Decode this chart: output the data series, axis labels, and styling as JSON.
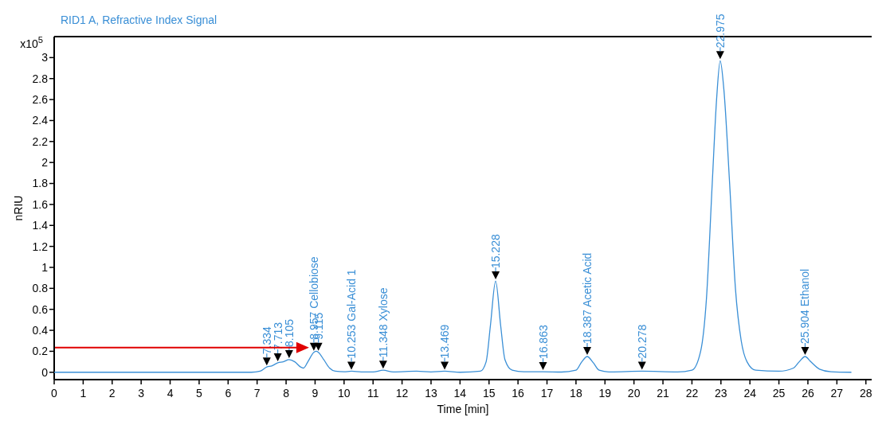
{
  "chart_data": {
    "type": "line",
    "subtitle": "RID1 A, Refractive Index Signal",
    "xlabel": "Time [min]",
    "ylabel": "nRIU",
    "xlim": [
      0,
      28.2
    ],
    "xticks": [
      0,
      1,
      2,
      3,
      4,
      5,
      6,
      7,
      8,
      9,
      10,
      11,
      12,
      13,
      14,
      15,
      16,
      17,
      18,
      19,
      20,
      21,
      22,
      23,
      24,
      25,
      26,
      27,
      28
    ],
    "ylim": [
      -0.07,
      3.2
    ],
    "yticks": [
      0,
      0.2,
      0.4,
      0.6,
      0.8,
      1,
      1.2,
      1.4,
      1.6,
      1.8,
      2,
      2.2,
      2.4,
      2.6,
      2.8,
      3
    ],
    "grid": false,
    "marker": "none",
    "line_style": "solid",
    "series": [
      {
        "color": "#3a8fd6",
        "x": [
          0,
          6.8,
          7.1,
          7.334,
          7.5,
          7.713,
          7.9,
          8.105,
          8.3,
          8.5,
          8.6,
          8.75,
          8.957,
          9.04,
          9.115,
          9.3,
          9.5,
          9.7,
          10.0,
          10.253,
          10.6,
          11.0,
          11.348,
          11.7,
          12.5,
          13.0,
          13.469,
          14.0,
          14.7,
          14.9,
          15.05,
          15.228,
          15.4,
          15.55,
          15.8,
          16.2,
          16.863,
          17.5,
          18.0,
          18.2,
          18.387,
          18.6,
          18.8,
          19.2,
          20.278,
          21.5,
          22.0,
          22.3,
          22.5,
          22.7,
          22.85,
          22.975,
          23.1,
          23.3,
          23.5,
          23.7,
          23.9,
          24.2,
          25.0,
          25.5,
          25.7,
          25.904,
          26.1,
          26.4,
          26.8,
          27.5
        ],
        "values": [
          0,
          0,
          0.01,
          0.05,
          0.06,
          0.09,
          0.1,
          0.12,
          0.1,
          0.05,
          0.04,
          0.1,
          0.19,
          0.2,
          0.19,
          0.12,
          0.04,
          0.01,
          0.005,
          0.01,
          0.003,
          0.003,
          0.02,
          0.003,
          0.01,
          0.003,
          0.01,
          0,
          0.01,
          0.1,
          0.45,
          0.87,
          0.45,
          0.12,
          0.02,
          0.005,
          0.005,
          0.002,
          0.02,
          0.1,
          0.15,
          0.09,
          0.02,
          0.003,
          0.01,
          0.003,
          0.02,
          0.2,
          0.7,
          1.8,
          2.6,
          2.97,
          2.7,
          1.8,
          0.8,
          0.3,
          0.1,
          0.02,
          0.01,
          0.04,
          0.1,
          0.15,
          0.1,
          0.03,
          0.005,
          0
        ]
      }
    ],
    "annotations": [
      "x10$^{5}$",
      {
        "text": "7.334",
        "x": 7.334,
        "y": 0.05
      },
      {
        "text": "7.713",
        "x": 7.713,
        "y": 0.09
      },
      {
        "text": "8.105",
        "x": 8.105,
        "y": 0.12
      },
      {
        "text": "8.957 Cellobiose",
        "x": 8.957,
        "y": 0.19
      },
      {
        "text": "9.115",
        "x": 9.115,
        "y": 0.19
      },
      {
        "text": "10.253 Gal-Acid 1",
        "x": 10.253,
        "y": 0.01
      },
      {
        "text": "11.348 Xylose",
        "x": 11.348,
        "y": 0.02
      },
      {
        "text": "13.469",
        "x": 13.469,
        "y": 0.01
      },
      {
        "text": "15.228",
        "x": 15.228,
        "y": 0.87
      },
      {
        "text": "16.863",
        "x": 16.863,
        "y": 0.005
      },
      {
        "text": "18.387 Acetic Acid",
        "x": 18.387,
        "y": 0.15
      },
      {
        "text": "20.278",
        "x": 20.278,
        "y": 0.01
      },
      {
        "text": "22.975",
        "x": 22.975,
        "y": 2.97
      },
      {
        "text": "25.904 Ethanol",
        "x": 25.904,
        "y": 0.15
      }
    ]
  }
}
